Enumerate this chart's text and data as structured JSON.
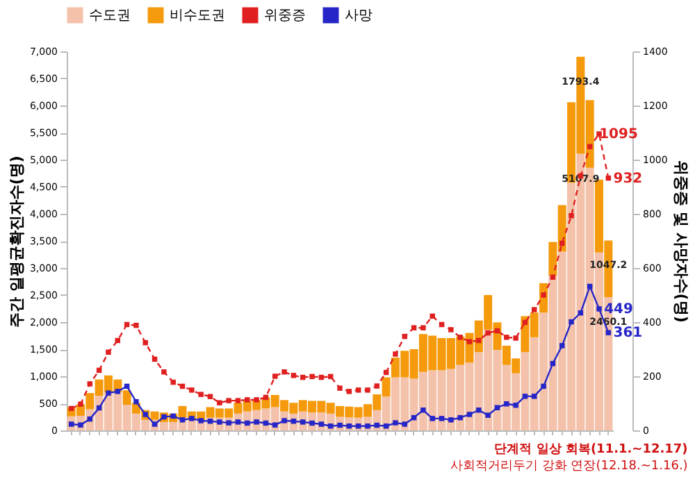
{
  "chart_data": {
    "type": "bar",
    "stacked": true,
    "categories": [
      null,
      null,
      null,
      null,
      null,
      null,
      null,
      null,
      null,
      null,
      null,
      null,
      null,
      null,
      null,
      null,
      null,
      null,
      null,
      null,
      null,
      null,
      null,
      null,
      null,
      null,
      null,
      null,
      null,
      null,
      null,
      null,
      null,
      null,
      null,
      null,
      null,
      null,
      null,
      null,
      null,
      null,
      null,
      null,
      null,
      null,
      null,
      null,
      null,
      null,
      null,
      null,
      null,
      null,
      null,
      null,
      null,
      null,
      null
    ],
    "ylabel": "주간 일평균확진자수(명)",
    "y2label": "위중증 및 사망자수(명)",
    "ylim": [
      0,
      7000
    ],
    "yticks": [
      0,
      500,
      {
        "value": 1000,
        "label": "1,000"
      },
      {
        "value": 1500,
        "label": "1,500"
      },
      {
        "value": 2000,
        "label": "2,000"
      },
      {
        "value": 2500,
        "label": "2,500"
      },
      {
        "value": 3000,
        "label": "3,000"
      },
      {
        "value": 3500,
        "label": "3,500"
      },
      {
        "value": 4000,
        "label": "4,000"
      },
      {
        "value": 4500,
        "label": "4,500"
      },
      {
        "value": 5000,
        "label": "5,000"
      },
      {
        "value": 5500,
        "label": "5,500"
      },
      {
        "value": 6000,
        "label": "6,000"
      },
      {
        "value": 6500,
        "label": "6,500"
      },
      {
        "value": 7000,
        "label": "7,000"
      }
    ],
    "y2lim": [
      0,
      1400
    ],
    "y2ticks": [
      0,
      200,
      400,
      600,
      800,
      1000,
      1200,
      1400
    ],
    "legend": "top",
    "grid": false,
    "series": [
      {
        "name": "수도권",
        "type": "bar",
        "color": "#f4c2aa",
        "values": [
          260,
          270,
          390,
          640,
          700,
          700,
          470,
          310,
          195,
          195,
          155,
          155,
          235,
          195,
          195,
          235,
          235,
          235,
          310,
          350,
          375,
          405,
          430,
          350,
          310,
          350,
          330,
          330,
          310,
          250,
          240,
          235,
          250,
          375,
          625,
          980,
          980,
          955,
          1080,
          1110,
          1110,
          1135,
          1210,
          1250,
          1445,
          1860,
          1485,
          1210,
          1055,
          1445,
          1720,
          2175,
          2855,
          3300,
          4575,
          5107.9,
          4850,
          3285,
          2460.1
        ],
        "value_labels": [
          null,
          null,
          null,
          null,
          null,
          null,
          null,
          null,
          null,
          null,
          null,
          null,
          null,
          null,
          null,
          null,
          null,
          null,
          null,
          null,
          null,
          null,
          null,
          null,
          null,
          null,
          null,
          null,
          null,
          null,
          null,
          null,
          null,
          null,
          null,
          null,
          null,
          null,
          null,
          null,
          null,
          null,
          null,
          null,
          null,
          null,
          null,
          null,
          null,
          null,
          null,
          null,
          null,
          null,
          null,
          "5107.9",
          null,
          null,
          "2460.1"
        ]
      },
      {
        "name": "비수도권",
        "type": "bar",
        "color": "#f59a0c",
        "values": [
          170,
          214,
          300,
          300,
          315,
          240,
          270,
          200,
          180,
          155,
          175,
          155,
          215,
          155,
          155,
          195,
          170,
          170,
          200,
          195,
          185,
          205,
          225,
          210,
          200,
          210,
          215,
          215,
          200,
          200,
          200,
          195,
          235,
          290,
          355,
          365,
          490,
          545,
          700,
          640,
          595,
          570,
          525,
          550,
          585,
          640,
          510,
          355,
          275,
          665,
          455,
          545,
          625,
          860,
          1485,
          1793.4,
          1250,
          1345,
          1047.2
        ],
        "value_labels": [
          null,
          null,
          null,
          null,
          null,
          null,
          null,
          null,
          null,
          null,
          null,
          null,
          null,
          null,
          null,
          null,
          null,
          null,
          null,
          null,
          null,
          null,
          null,
          null,
          null,
          null,
          null,
          null,
          null,
          null,
          null,
          null,
          null,
          null,
          null,
          null,
          null,
          null,
          null,
          null,
          null,
          null,
          null,
          null,
          null,
          null,
          null,
          null,
          null,
          null,
          null,
          null,
          null,
          null,
          null,
          "1793.4",
          null,
          null,
          "1047.2"
        ]
      },
      {
        "name": "위중증",
        "type": "line",
        "axis": "y2",
        "color": "#e02020",
        "line_style": "dashed",
        "marker": "square",
        "values": [
          81,
          97,
          172,
          222,
          289,
          332,
          391,
          388,
          324,
          263,
          216,
          178,
          163,
          149,
          133,
          125,
          102,
          110,
          110,
          113,
          113,
          122,
          200,
          216,
          203,
          196,
          199,
          196,
          199,
          156,
          144,
          149,
          149,
          164,
          214,
          282,
          347,
          379,
          379,
          422,
          391,
          372,
          344,
          328,
          332,
          360,
          368,
          344,
          341,
          399,
          446,
          500,
          566,
          691,
          793,
          940,
          1048,
          1095,
          932
        ],
        "value_labels": [
          null,
          null,
          null,
          null,
          null,
          null,
          null,
          null,
          null,
          null,
          null,
          null,
          null,
          null,
          null,
          null,
          null,
          null,
          null,
          null,
          null,
          null,
          null,
          null,
          null,
          null,
          null,
          null,
          null,
          null,
          null,
          null,
          null,
          null,
          null,
          null,
          null,
          null,
          null,
          null,
          null,
          null,
          null,
          null,
          null,
          null,
          null,
          null,
          null,
          null,
          null,
          null,
          null,
          null,
          null,
          null,
          null,
          "1095",
          "932"
        ]
      },
      {
        "name": "사망",
        "type": "line",
        "axis": "y2",
        "color": "#2626c8",
        "line_style": "solid",
        "marker": "square",
        "values": [
          23,
          20,
          42,
          83,
          138,
          144,
          163,
          106,
          59,
          23,
          50,
          53,
          39,
          44,
          36,
          34,
          31,
          28,
          31,
          27,
          31,
          27,
          20,
          36,
          34,
          31,
          27,
          23,
          16,
          19,
          16,
          16,
          16,
          19,
          16,
          28,
          23,
          47,
          75,
          44,
          44,
          39,
          47,
          59,
          75,
          56,
          84,
          98,
          93,
          126,
          126,
          163,
          247,
          313,
          401,
          434,
          532,
          449,
          361
        ],
        "value_labels": [
          null,
          null,
          null,
          null,
          null,
          null,
          null,
          null,
          null,
          null,
          null,
          null,
          null,
          null,
          null,
          null,
          null,
          null,
          null,
          null,
          null,
          null,
          null,
          null,
          null,
          null,
          null,
          null,
          null,
          null,
          null,
          null,
          null,
          null,
          null,
          null,
          null,
          null,
          null,
          null,
          null,
          null,
          null,
          null,
          null,
          null,
          null,
          null,
          null,
          null,
          null,
          null,
          null,
          null,
          null,
          null,
          null,
          "449",
          "361"
        ]
      }
    ],
    "annotations": [
      "단계적 일상 회복(11.1.~12.17)",
      "사회적거리두기 강화 연장(12.18.~1.16.)"
    ]
  }
}
